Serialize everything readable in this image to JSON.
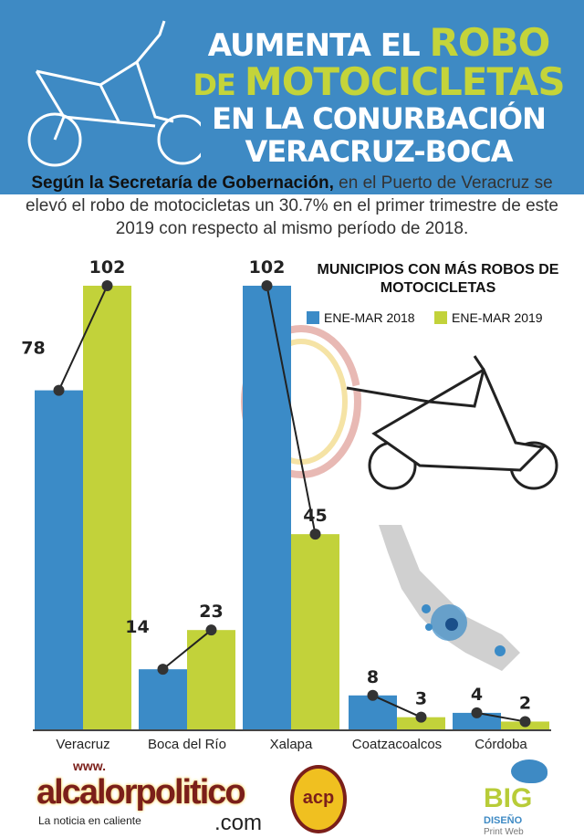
{
  "header": {
    "line1a": "AUMENTA EL ",
    "line1b": "ROBO",
    "line2a": "DE ",
    "line2b": "MOTOCICLETAS",
    "line3": "EN LA CONURBACIÓN",
    "line4": "VERACRUZ-BOCA"
  },
  "intro": {
    "bold": "Según la Secretaría de Gobernación,",
    "text": " en el Puerto de Veracruz se elevó el robo de motocicletas un 30.7% en el primer trimestre de este 2019 con respecto al mismo período de 2018."
  },
  "colors": {
    "s2018": "#3b8bc7",
    "s2019": "#c2d23a"
  },
  "chart_data": {
    "type": "bar",
    "title": "MUNICIPIOS CON MÁS ROBOS DE MOTOCICLETAS",
    "categories": [
      "Veracruz",
      "Boca del Río",
      "Xalapa",
      "Coatzacoalcos",
      "Córdoba"
    ],
    "series": [
      {
        "name": "ENE-MAR 2018",
        "values": [
          78,
          14,
          102,
          8,
          4
        ]
      },
      {
        "name": "ENE-MAR 2019",
        "values": [
          102,
          23,
          45,
          3,
          2
        ]
      }
    ],
    "ylim": [
      0,
      102
    ],
    "legend": "top-right"
  },
  "footer": {
    "www": "www.",
    "brand": "alcalorpolitico",
    "com": ".com",
    "tagline": "La noticia en caliente",
    "seal": "acp",
    "big": "BIG",
    "diseno": "DISEÑO",
    "printweb": "Print Web"
  }
}
